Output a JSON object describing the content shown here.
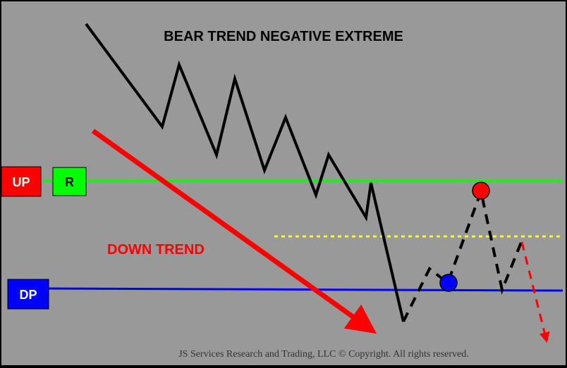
{
  "title": "BEAR TREND NEGATIVE EXTREME",
  "trend_label": "DOWN TREND",
  "labels": {
    "up": "UP",
    "r": "R",
    "dp": "DP"
  },
  "copyright": "JS Services Research and Trading, LLC © Copyright. All rights reserved.",
  "colors": {
    "background": "#999999",
    "up_box": "#ff0000",
    "r_box": "#00ff00",
    "dp_box": "#0000ff",
    "resistance_line": "#00ff00",
    "dp_line": "#0000ff",
    "dotted_level": "#ffff00",
    "trend_arrow": "#ff0000",
    "price_path": "#000000",
    "red_marker": "#ff0000",
    "blue_marker": "#0000ff"
  }
}
